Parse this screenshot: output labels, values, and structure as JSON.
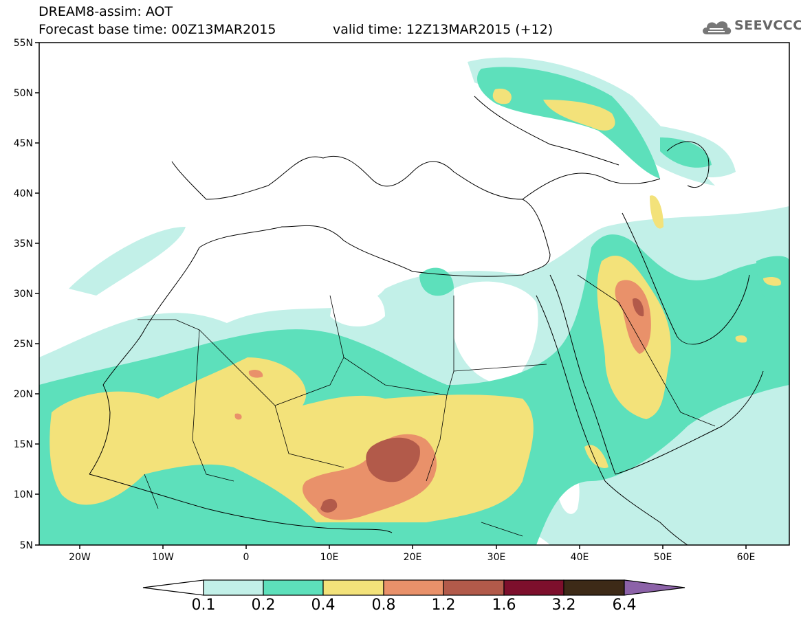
{
  "header": {
    "title_line1": "DREAM8-assim: AOT",
    "base_time": "Forecast base time: 00Z13MAR2015",
    "valid_time": "valid time: 12Z13MAR2015 (+12)"
  },
  "logo": {
    "text": "SEEVCCC"
  },
  "map": {
    "lat_labels": [
      "55N",
      "50N",
      "45N",
      "40N",
      "35N",
      "30N",
      "25N",
      "20N",
      "15N",
      "10N",
      "5N"
    ],
    "lon_labels": [
      "20W",
      "10W",
      "0",
      "10E",
      "20E",
      "30E",
      "40E",
      "50E",
      "60E"
    ],
    "lat_range": [
      5,
      55
    ],
    "lon_range": [
      -25,
      65
    ]
  },
  "legend": {
    "levels": [
      "0.1",
      "0.2",
      "0.4",
      "0.8",
      "1.2",
      "1.6",
      "3.2",
      "6.4"
    ],
    "colors": [
      "#ffffff",
      "#c2f0e8",
      "#5de0bb",
      "#f3e27a",
      "#e9916a",
      "#b25a4a",
      "#7d0f2c",
      "#3d2a17",
      "#8c62a8"
    ]
  }
}
